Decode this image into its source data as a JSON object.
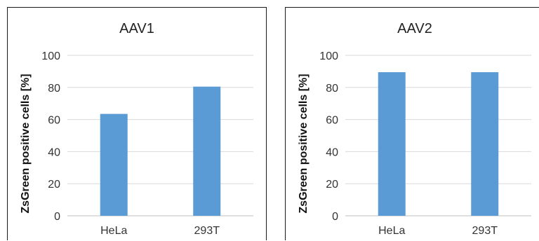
{
  "chart_data": [
    {
      "type": "bar",
      "title": "AAV1",
      "ylabel": "ZsGreen positive cells [%]",
      "xlabel": "",
      "categories": [
        "HeLa",
        "293T"
      ],
      "values": [
        63.5,
        80.5
      ],
      "ylim": [
        0,
        100
      ],
      "yticks": [
        "0",
        "20",
        "40",
        "60",
        "80",
        "100"
      ],
      "grid": true,
      "bar_color": "#5B9BD5"
    },
    {
      "type": "bar",
      "title": "AAV2",
      "ylabel": "ZsGreen positive cells [%]",
      "xlabel": "",
      "categories": [
        "HeLa",
        "293T"
      ],
      "values": [
        89.5,
        89.5
      ],
      "ylim": [
        0,
        100
      ],
      "yticks": [
        "0",
        "20",
        "40",
        "60",
        "80",
        "100"
      ],
      "grid": true,
      "bar_color": "#5B9BD5"
    }
  ]
}
